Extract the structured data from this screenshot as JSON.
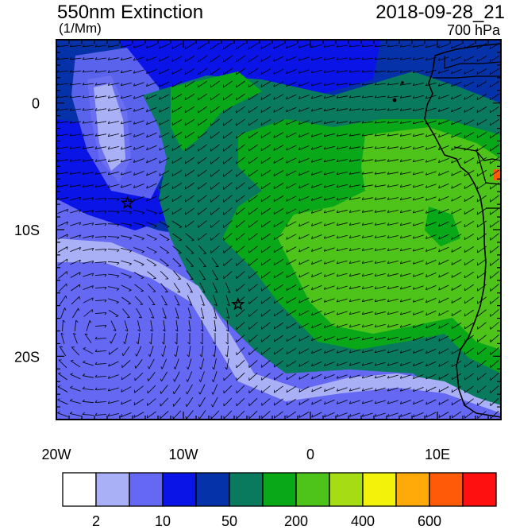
{
  "header": {
    "title": "550nm Extinction",
    "units": "(1/Mm)",
    "timestamp": "2018-09-28_21",
    "level": "700 hPa"
  },
  "axes": {
    "y_labels": [
      {
        "text": "0",
        "lat": 0
      },
      {
        "text": "10S",
        "lat": -10
      },
      {
        "text": "20S",
        "lat": -20
      }
    ],
    "x_labels": [
      {
        "text": "20W",
        "lon": -20
      },
      {
        "text": "10W",
        "lon": -10
      },
      {
        "text": "0",
        "lon": 0
      },
      {
        "text": "10E",
        "lon": 10
      }
    ],
    "lon_range": [
      -20,
      15
    ],
    "lat_range": [
      -25,
      5
    ]
  },
  "colorbar": {
    "colors": [
      "#ffffff",
      "#aab0f6",
      "#6468f2",
      "#0a14e6",
      "#0532a8",
      "#0a7a5e",
      "#08a818",
      "#4ec41a",
      "#a6dc14",
      "#f2f20a",
      "#ffaa08",
      "#ff5a08",
      "#ff1010"
    ],
    "labels": [
      {
        "text": "2",
        "index": 1
      },
      {
        "text": "10",
        "index": 3
      },
      {
        "text": "50",
        "index": 5
      },
      {
        "text": "200",
        "index": 7
      },
      {
        "text": "400",
        "index": 9
      },
      {
        "text": "600",
        "index": 11
      }
    ]
  },
  "markers": [
    {
      "name": "star-ascension",
      "lon": -14.4,
      "lat": -7.9
    },
    {
      "name": "star-st-helena",
      "lon": -5.7,
      "lat": -15.9
    }
  ],
  "field_colors": {
    "ocean_low": "#6468f2",
    "ocean_pale": "#aab0f6",
    "blue": "#0a14e6",
    "dark_blue": "#0532a8",
    "teal": "#0a7a5e",
    "green": "#08a818",
    "lime": "#4ec41a",
    "orange": "#ff5a08"
  }
}
